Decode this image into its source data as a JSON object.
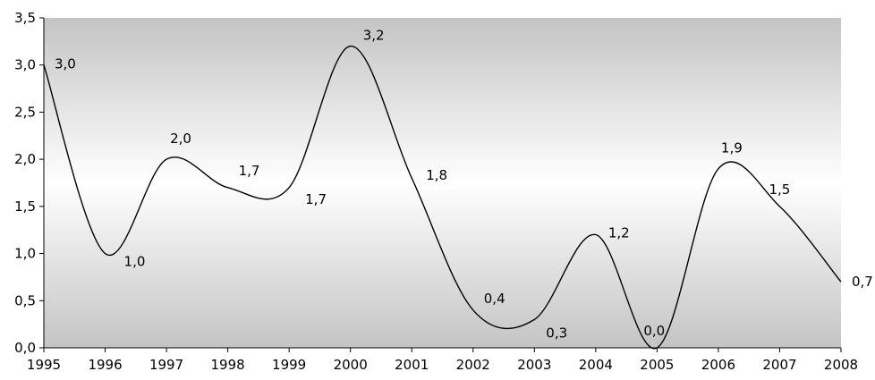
{
  "chart_data": {
    "type": "line",
    "title": "",
    "xlabel": "",
    "ylabel": "",
    "x": [
      "1995",
      "1996",
      "1997",
      "1998",
      "1999",
      "2000",
      "2001",
      "2002",
      "2003",
      "2004",
      "2005",
      "2006",
      "2007",
      "2008"
    ],
    "series": [
      {
        "values": [
          3.0,
          1.0,
          2.0,
          1.7,
          1.7,
          3.2,
          1.8,
          0.4,
          0.3,
          1.2,
          0.0,
          1.9,
          1.5,
          0.7
        ],
        "labels": [
          "3,0",
          "1,0",
          "2,0",
          "1,7",
          "1,7",
          "3,2",
          "1,8",
          "0,4",
          "0,3",
          "1,2",
          "0,0",
          "1,9",
          "1,5",
          "0,7"
        ]
      }
    ],
    "ylim": [
      0,
      3.5
    ],
    "yticks": [
      0,
      0.5,
      1.0,
      1.5,
      2.0,
      2.5,
      3.0,
      3.5
    ],
    "ytick_labels": [
      "0,0",
      "0,5",
      "1,0",
      "1,5",
      "2,0",
      "2,5",
      "3,0",
      "3,5"
    ],
    "grid": false,
    "legend": "none",
    "colors": {
      "line": "#000000",
      "axis": "#000000",
      "bg_edge": "#c4c4c4",
      "bg_center": "#ffffff"
    }
  }
}
